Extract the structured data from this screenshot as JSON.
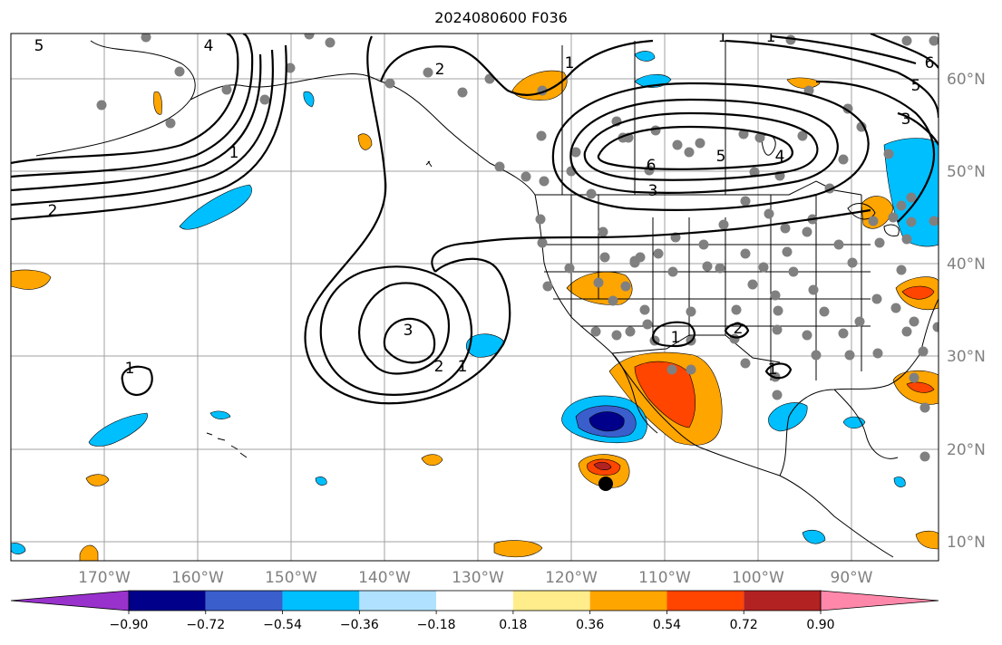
{
  "title": "2024080600 F036",
  "lat_labels": [
    "60°N",
    "50°N",
    "40°N",
    "30°N",
    "20°N",
    "10°N"
  ],
  "lon_labels": [
    "170°W",
    "160°W",
    "150°W",
    "140°W",
    "130°W",
    "120°W",
    "110°W",
    "100°W",
    "90°W"
  ],
  "colorbar": {
    "labels": [
      "−0.90",
      "−0.72",
      "−0.54",
      "−0.36",
      "−0.18",
      "0.18",
      "0.36",
      "0.54",
      "0.72",
      "0.90"
    ],
    "colors": [
      "#9932cc",
      "#00008b",
      "#3a5fcd",
      "#00bfff",
      "#b0e2ff",
      "#ffffff",
      "#ffec8b",
      "#ffa500",
      "#ff4500",
      "#b22222",
      "#ff88aa"
    ]
  },
  "contour_labels": [
    "5",
    "4",
    "2",
    "1",
    "1",
    "3",
    "2",
    "1",
    "1",
    "6",
    "5",
    "4",
    "3",
    "5",
    "6",
    "3",
    "1",
    "1",
    "2",
    "1",
    "1",
    "2"
  ],
  "colors": {
    "contour": "#000000",
    "grid": "#a0a0a0",
    "station": "#808080",
    "marker": "#000000"
  }
}
